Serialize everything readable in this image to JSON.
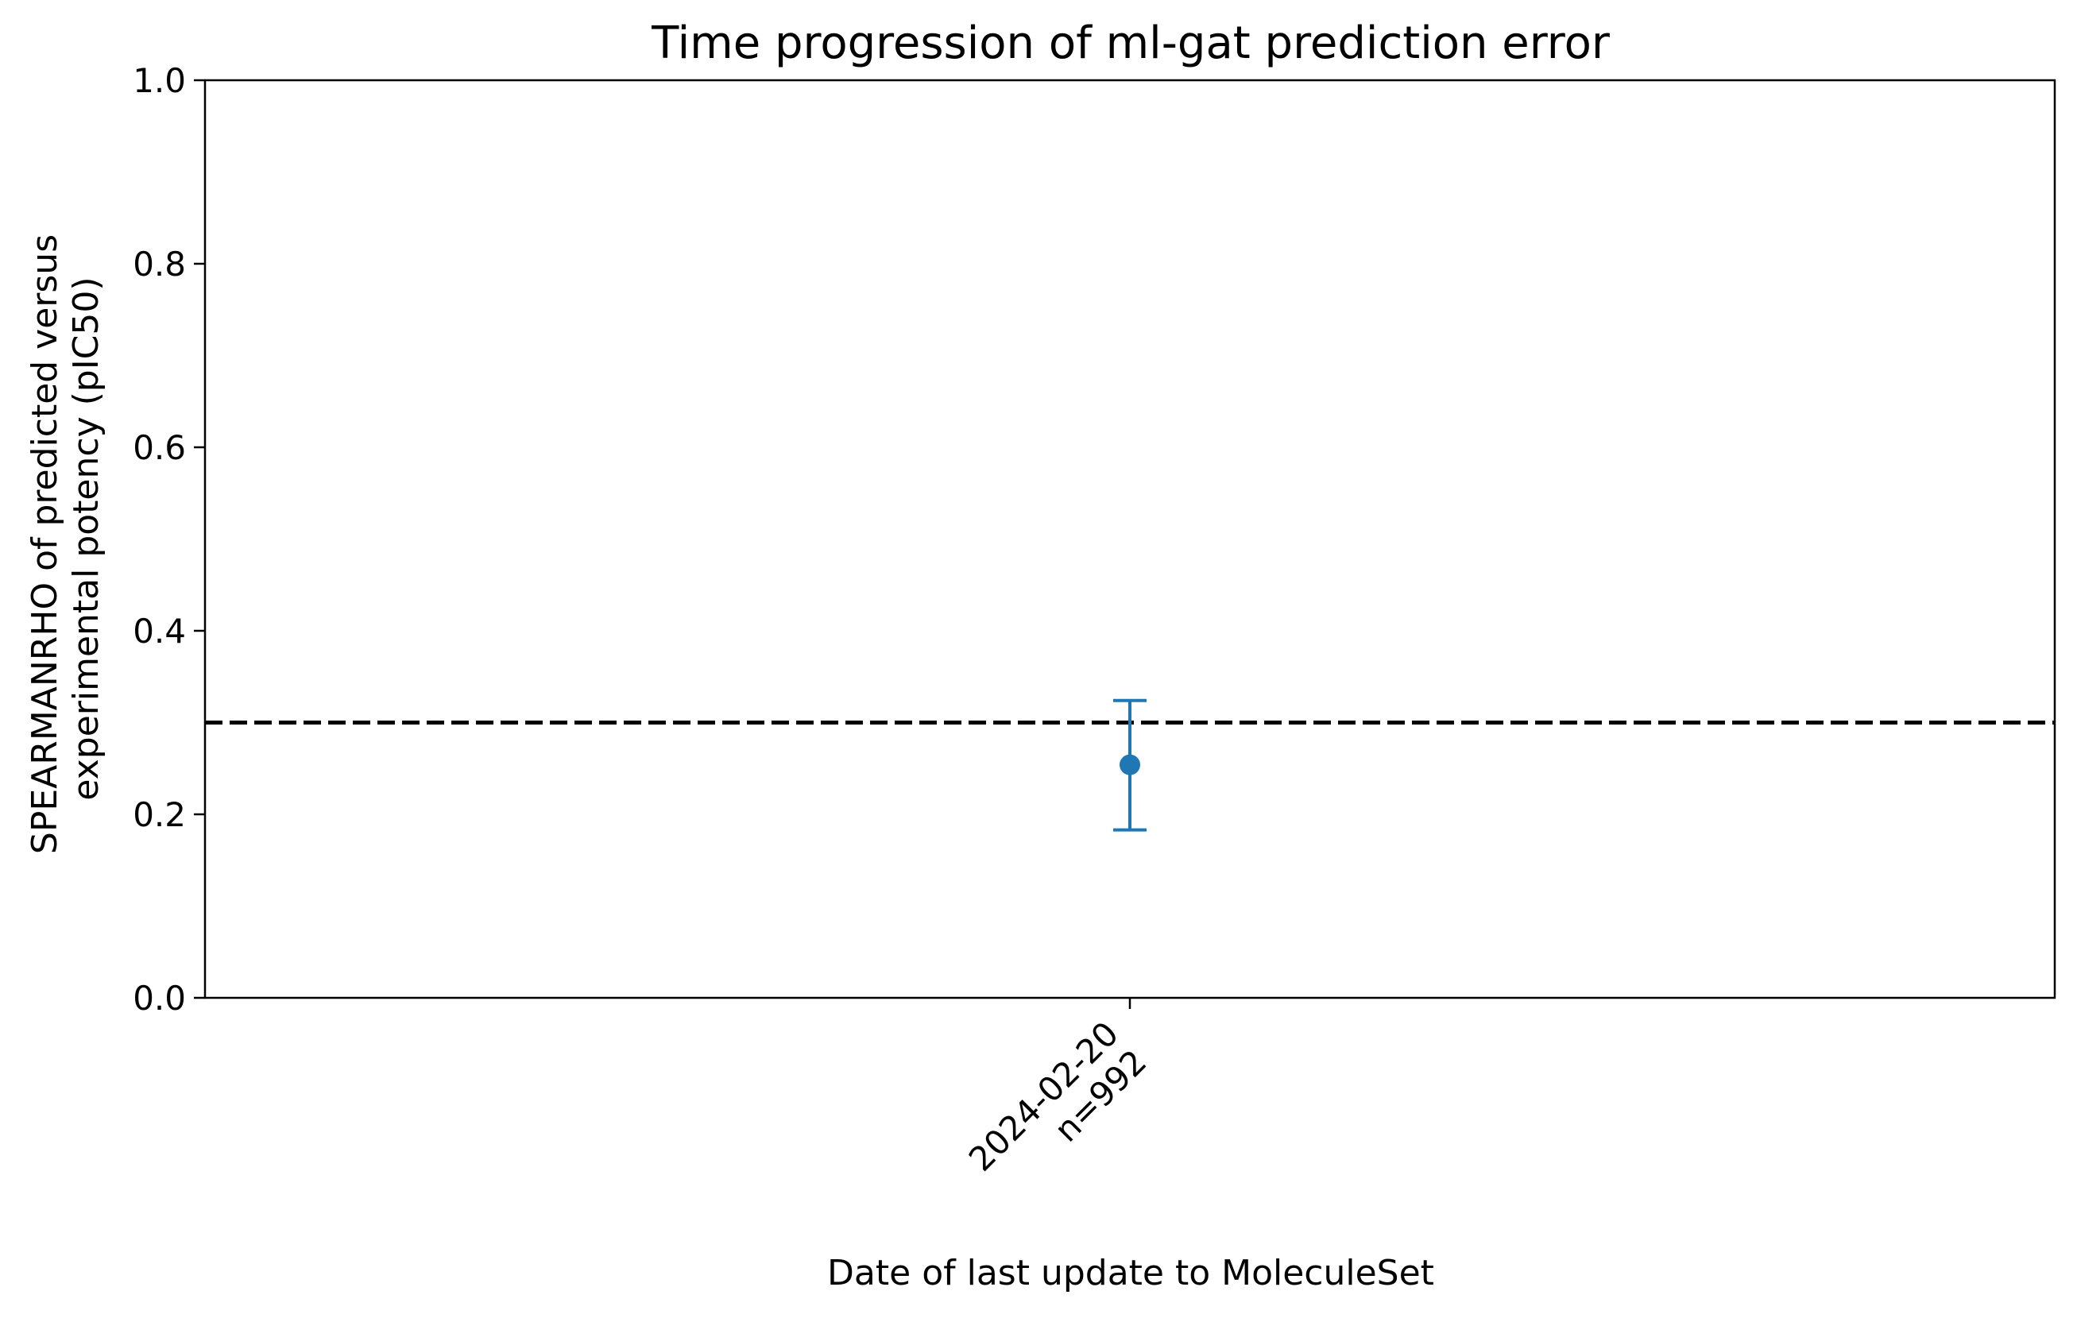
{
  "chart_data": {
    "type": "scatter",
    "title": "Time progression of ml-gat prediction error",
    "xlabel": "Date of last update to MoleculeSet",
    "ylabel_lines": [
      "SPEARMANRHO of predicted versus",
      "experimental potency (pIC50)"
    ],
    "ylim": [
      0,
      1
    ],
    "yticks": [
      0,
      0.2,
      0.4,
      0.6,
      0.8,
      1
    ],
    "ytick_labels": [
      "0.0",
      "0.2",
      "0.4",
      "0.6",
      "0.8",
      "1.0"
    ],
    "categories": [
      {
        "date": "2024-02-20",
        "n_label": "n=992"
      }
    ],
    "series": [
      {
        "values": [
          0.254
        ],
        "error_low": [
          0.183
        ],
        "error_high": [
          0.324
        ],
        "color": "#1f77b4",
        "marker": "circle"
      }
    ],
    "reference_line": {
      "y": 0.3,
      "style": "dashed",
      "color": "#000000"
    },
    "grid": false
  }
}
